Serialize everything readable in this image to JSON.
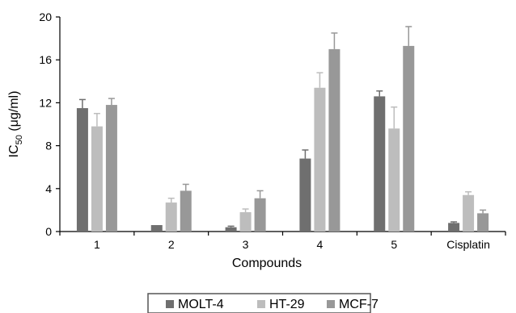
{
  "chart_data": {
    "type": "bar",
    "categories": [
      "1",
      "2",
      "3",
      "4",
      "5",
      "Cisplatin"
    ],
    "series": [
      {
        "name": "MOLT-4",
        "color": "#6f6f6f",
        "values": [
          11.5,
          0.6,
          0.4,
          6.8,
          12.6,
          0.8
        ],
        "errors": [
          0.8,
          0.0,
          0.1,
          0.8,
          0.5,
          0.1
        ]
      },
      {
        "name": "HT-29",
        "color": "#bdbdbd",
        "values": [
          9.8,
          2.7,
          1.8,
          13.4,
          9.6,
          3.4
        ],
        "errors": [
          1.2,
          0.4,
          0.3,
          1.4,
          2.0,
          0.3
        ]
      },
      {
        "name": "MCF-7",
        "color": "#989898",
        "values": [
          11.8,
          3.8,
          3.1,
          17.0,
          17.3,
          1.7
        ],
        "errors": [
          0.6,
          0.6,
          0.7,
          1.5,
          1.8,
          0.3
        ]
      }
    ],
    "ylabel": "IC50 (μg/ml)",
    "ylabel_main": "IC",
    "ylabel_sub": "50",
    "ylabel_rest": " (μg/ml)",
    "xlabel": "Compounds",
    "ylim": [
      0,
      20
    ],
    "yticks": [
      0,
      4,
      8,
      12,
      16,
      20
    ],
    "grid": false,
    "legend_position": "bottom"
  }
}
